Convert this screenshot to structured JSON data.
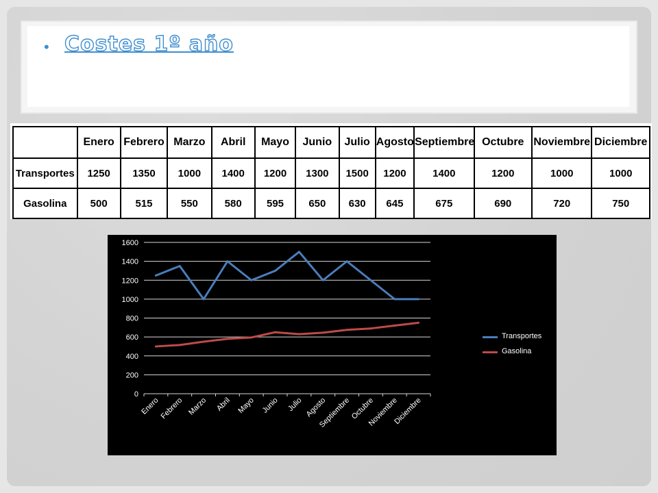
{
  "slide": {
    "title": "Costes 1º año"
  },
  "table": {
    "months": [
      "Enero",
      "Febrero",
      "Marzo",
      "Abril",
      "Mayo",
      "Junio",
      "Julio",
      "Agosto",
      "Septiembre",
      "Octubre",
      "Noviembre",
      "Diciembre"
    ],
    "rows": [
      {
        "label": "Transportes",
        "values": [
          "1250",
          "1350",
          "1000",
          "1400",
          "1200",
          "1300",
          "1500",
          "1200",
          "1400",
          "1200",
          "1000",
          "1000"
        ]
      },
      {
        "label": "Gasolina",
        "values": [
          "500",
          "515",
          "550",
          "580",
          "595",
          "650",
          "630",
          "645",
          "675",
          "690",
          "720",
          "750"
        ]
      }
    ]
  },
  "chart_data": {
    "type": "line",
    "categories": [
      "Enero",
      "Febrero",
      "Marzo",
      "Abril",
      "Mayo",
      "Junio",
      "Julio",
      "Agosto",
      "Septiembre",
      "Octubre",
      "Noviembre",
      "Diciembre"
    ],
    "series": [
      {
        "name": "Transportes",
        "color": "#4a7ebb",
        "values": [
          1250,
          1350,
          1000,
          1400,
          1200,
          1300,
          1500,
          1200,
          1400,
          1200,
          1000,
          1000
        ]
      },
      {
        "name": "Gasolina",
        "color": "#be4b48",
        "values": [
          500,
          515,
          550,
          580,
          595,
          650,
          630,
          645,
          675,
          690,
          720,
          750
        ]
      }
    ],
    "ylim": [
      0,
      1600
    ],
    "yticks": [
      "0",
      "200",
      "400",
      "600",
      "800",
      "1000",
      "1200",
      "1400",
      "1600"
    ],
    "grid": true,
    "legend": "right",
    "background": "#000000",
    "gridcolor": "#d9d9d9"
  }
}
